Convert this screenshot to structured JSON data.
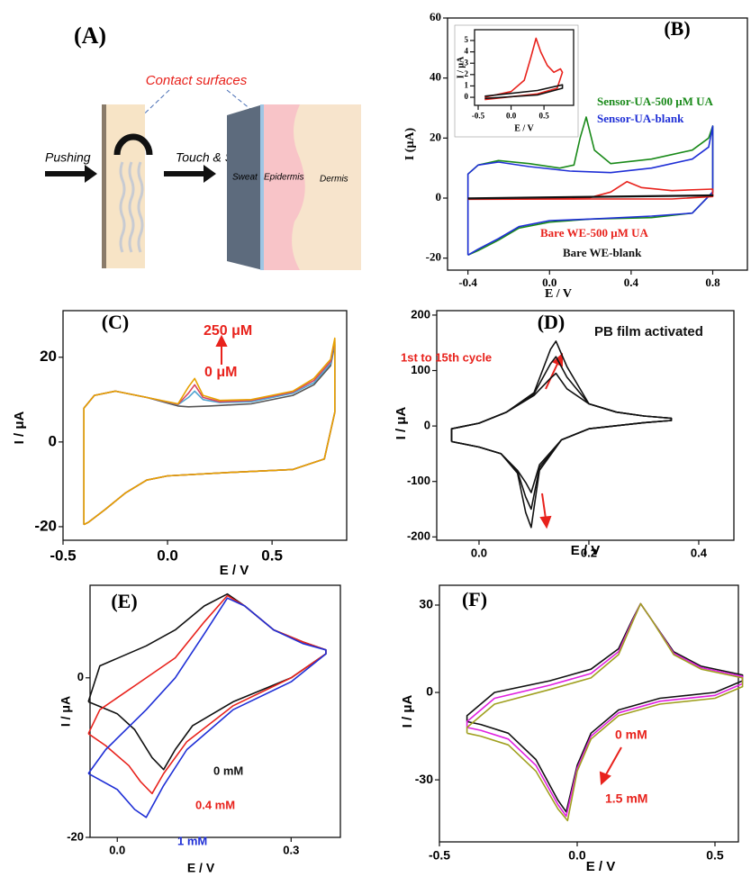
{
  "schematic": {
    "panel_label": "(A)",
    "callout": "Contact surfaces",
    "push_label": "Pushing",
    "touch_label": "Touch & Sense",
    "sweat_label": "Sweat",
    "epidermis_label": "Epidermis",
    "dermis_label": "Dermis"
  },
  "chart_data": [
    {
      "type": "line",
      "panel_label": "(B)",
      "xlabel": "E / V",
      "ylabel": "I (μA)",
      "xlim": [
        -0.5,
        0.97
      ],
      "ylim": [
        -24,
        60
      ],
      "xticks": [
        -0.4,
        {
          "value": 0,
          "label": "0.0"
        },
        0.4,
        0.8
      ],
      "yticks": [
        -20,
        0,
        20,
        40,
        60
      ],
      "series": [
        {
          "name": "Sensor-UA-500 μM UA",
          "color": "#1a8a1a",
          "x": [
            -0.4,
            -0.4,
            -0.35,
            -0.25,
            -0.1,
            0.05,
            0.12,
            0.15,
            0.18,
            0.22,
            0.3,
            0.5,
            0.7,
            0.78,
            0.8,
            0.8,
            0.7,
            0.5,
            0.2,
            0,
            -0.15,
            -0.25,
            -0.35,
            -0.4
          ],
          "values": [
            -19,
            8,
            11,
            12.5,
            11.5,
            10,
            11,
            20,
            27,
            16,
            11.5,
            13,
            16,
            20,
            24,
            2,
            -5,
            -6.5,
            -7,
            -8,
            -10,
            -14,
            -17.5,
            -19
          ]
        },
        {
          "name": "Sensor-UA-blank",
          "color": "#1f2fd6",
          "x": [
            -0.4,
            -0.4,
            -0.35,
            -0.25,
            -0.1,
            0.1,
            0.3,
            0.5,
            0.7,
            0.78,
            0.8,
            0.8,
            0.7,
            0.5,
            0.2,
            0,
            -0.15,
            -0.25,
            -0.35,
            -0.4
          ],
          "values": [
            -19,
            8,
            11,
            12,
            10.5,
            9,
            8.5,
            10,
            13,
            17,
            24,
            2,
            -5,
            -6,
            -7,
            -7.5,
            -9.5,
            -13.5,
            -17,
            -19
          ]
        },
        {
          "name": "Bare WE-500 μM UA",
          "color": "#e8221c",
          "x": [
            -0.4,
            0.2,
            0.3,
            0.38,
            0.45,
            0.6,
            0.8,
            0.8,
            0.6,
            0.2,
            -0.4
          ],
          "values": [
            -0.2,
            0.2,
            2,
            5.5,
            3.5,
            2.5,
            3,
            0.5,
            -0.3,
            -0.3,
            -0.4
          ]
        },
        {
          "name": "Bare WE-blank",
          "color": "#111111",
          "x": [
            -0.4,
            0.8,
            0.8,
            -0.4
          ],
          "values": [
            0,
            1,
            0.8,
            -0.2
          ]
        }
      ]
    },
    {
      "type": "line",
      "xlabel": "E / V",
      "ylabel": "I / μA",
      "xlim": [
        -0.555,
        0.95
      ],
      "ylim": [
        -0.71,
        5.95
      ],
      "xticks": [
        -0.5,
        {
          "value": 0,
          "label": "0.0"
        },
        0.5
      ],
      "yticks": [
        0,
        1,
        2,
        3,
        4,
        5
      ],
      "series": [
        {
          "color": "#e8221c",
          "x": [
            -0.4,
            0,
            0.2,
            0.3,
            0.38,
            0.45,
            0.55,
            0.65,
            0.75,
            0.78,
            0.7,
            0.4,
            -0.4
          ],
          "values": [
            0,
            0.5,
            1.5,
            3.5,
            5.2,
            4,
            2.8,
            2.2,
            2.5,
            2.2,
            0.8,
            0.3,
            -0.2
          ]
        },
        {
          "color": "#111111",
          "x": [
            -0.4,
            0.4,
            0.78,
            0.78,
            0.4,
            -0.4
          ],
          "values": [
            0.1,
            0.6,
            1.1,
            0.8,
            0.2,
            -0.1
          ]
        }
      ]
    },
    {
      "type": "line",
      "panel_label": "(C)",
      "xlabel": "E / V",
      "ylabel": "I / μA",
      "xlim": [
        -0.5,
        0.857
      ],
      "ylim": [
        -23.2,
        31
      ],
      "xticks": [
        -0.5,
        {
          "value": 0,
          "label": "0.0"
        },
        0.5
      ],
      "yticks": [
        -20,
        0,
        20
      ],
      "series": [
        {
          "color": "#555555",
          "x": [
            -0.4,
            -0.4,
            -0.35,
            -0.25,
            -0.1,
            0.05,
            0.1,
            0.2,
            0.4,
            0.6,
            0.7,
            0.78,
            0.8,
            0.8,
            0.75,
            0.6,
            0.3,
            0,
            -0.1,
            -0.2,
            -0.3,
            -0.38,
            -0.4
          ],
          "values": [
            -19.5,
            8,
            11,
            12,
            10.5,
            8.5,
            8.3,
            8.5,
            9,
            11,
            13.5,
            18,
            23,
            7,
            -4,
            -6.5,
            -7.2,
            -8,
            -9,
            -12,
            -16,
            -19,
            -19.5
          ]
        },
        {
          "color": "#4fa3d1",
          "x": [
            -0.4,
            -0.4,
            -0.35,
            -0.25,
            -0.1,
            0.05,
            0.1,
            0.13,
            0.17,
            0.25,
            0.4,
            0.6,
            0.7,
            0.78,
            0.8,
            0.8,
            0.75,
            0.6,
            0.3,
            0,
            -0.1,
            -0.2,
            -0.3,
            -0.38,
            -0.4
          ],
          "values": [
            -19.5,
            8,
            11,
            12,
            10.5,
            8.8,
            10.5,
            12,
            10,
            9.3,
            9.5,
            11.5,
            14,
            18.5,
            23.5,
            7,
            -4,
            -6.5,
            -7.2,
            -8,
            -9,
            -12,
            -16,
            -19,
            -19.5
          ]
        },
        {
          "color": "#d9455f",
          "x": [
            -0.4,
            -0.4,
            -0.35,
            -0.25,
            -0.1,
            0.05,
            0.1,
            0.13,
            0.17,
            0.25,
            0.4,
            0.6,
            0.7,
            0.78,
            0.8,
            0.8,
            0.75,
            0.6,
            0.3,
            0,
            -0.1,
            -0.2,
            -0.3,
            -0.38,
            -0.4
          ],
          "values": [
            -19.5,
            8,
            11,
            12,
            10.5,
            8.9,
            11.5,
            13.5,
            10.5,
            9.5,
            9.8,
            11.8,
            14.5,
            19,
            24,
            7,
            -4,
            -6.5,
            -7.2,
            -8,
            -9,
            -12,
            -16,
            -19,
            -19.5
          ]
        },
        {
          "color": "#e6a100",
          "x": [
            -0.4,
            -0.4,
            -0.35,
            -0.25,
            -0.1,
            0.05,
            0.1,
            0.13,
            0.17,
            0.25,
            0.4,
            0.6,
            0.7,
            0.78,
            0.8,
            0.8,
            0.75,
            0.6,
            0.3,
            0,
            -0.1,
            -0.2,
            -0.3,
            -0.38,
            -0.4
          ],
          "values": [
            -19.5,
            8,
            11,
            12,
            10.5,
            9,
            13,
            15,
            11,
            9.8,
            10,
            12,
            15,
            19.5,
            24.5,
            7,
            -4,
            -6.5,
            -7.2,
            -8,
            -9,
            -12,
            -16,
            -19,
            -19.5
          ]
        }
      ],
      "annotations": [
        {
          "text": "250 μM",
          "color": "#e8221c"
        },
        {
          "text": "0 μM",
          "color": "#e8221c"
        }
      ]
    },
    {
      "type": "line",
      "panel_label": "(D)",
      "xlabel": "E / V",
      "ylabel": "I / μA",
      "xlim": [
        -0.077,
        0.464
      ],
      "ylim": [
        -206,
        208
      ],
      "xticks": [
        {
          "value": 0,
          "label": "0.0"
        },
        0.2,
        0.4
      ],
      "yticks": [
        -200,
        -100,
        0,
        100,
        200
      ],
      "series": [
        {
          "color": "#111111",
          "x": [
            -0.05,
            -0.05,
            0,
            0.05,
            0.1,
            0.13,
            0.14,
            0.16,
            0.2,
            0.25,
            0.3,
            0.35,
            0.35,
            0.3,
            0.2,
            0.15,
            0.11,
            0.095,
            0.085,
            0.07,
            0.04,
            0,
            -0.05
          ],
          "values": [
            -28,
            -5,
            5,
            25,
            55,
            86,
            95,
            67,
            40,
            25,
            18,
            14,
            10,
            6,
            -5,
            -25,
            -70,
            -120,
            -102,
            -80,
            -50,
            -38,
            -28
          ]
        },
        {
          "color": "#111111",
          "x": [
            -0.05,
            -0.05,
            0,
            0.05,
            0.1,
            0.13,
            0.14,
            0.16,
            0.2,
            0.25,
            0.3,
            0.35,
            0.35,
            0.3,
            0.2,
            0.15,
            0.11,
            0.095,
            0.085,
            0.07,
            0.04,
            0,
            -0.05
          ],
          "values": [
            -28,
            -5,
            5,
            25,
            58,
            112,
            125,
            88,
            40,
            25,
            18,
            14,
            10,
            6,
            -5,
            -25,
            -75,
            -150,
            -128,
            -82,
            -50,
            -38,
            -28
          ]
        },
        {
          "color": "#111111",
          "x": [
            -0.05,
            -0.05,
            0,
            0.05,
            0.1,
            0.13,
            0.14,
            0.16,
            0.2,
            0.25,
            0.3,
            0.35,
            0.35,
            0.3,
            0.2,
            0.15,
            0.11,
            0.095,
            0.085,
            0.07,
            0.04,
            0,
            -0.05
          ],
          "values": [
            -28,
            -5,
            5,
            25,
            60,
            138,
            153,
            107,
            40,
            25,
            18,
            14,
            10,
            6,
            -5,
            -25,
            -80,
            -183,
            -156,
            -85,
            -50,
            -38,
            -28
          ]
        }
      ],
      "annotations": [
        {
          "text": "PB film activated",
          "color": "#111111"
        },
        {
          "text": "1st  to 15th cycle",
          "color": "#e8221c"
        }
      ]
    },
    {
      "type": "line",
      "panel_label": "(E)",
      "xlabel": "E / V",
      "ylabel": "I / μA",
      "xlim": [
        -0.047,
        0.385
      ],
      "ylim": [
        -20,
        11.6
      ],
      "xticks": [
        {
          "value": 0,
          "label": "0.0"
        },
        0.3
      ],
      "yticks": [
        -20,
        0
      ],
      "series": [
        {
          "color": "#111111",
          "x": [
            -0.05,
            -0.03,
            0.05,
            0.1,
            0.15,
            0.19,
            0.22,
            0.27,
            0.32,
            0.36,
            0.36,
            0.3,
            0.2,
            0.13,
            0.1,
            0.08,
            0.06,
            0.03,
            0,
            -0.05
          ],
          "values": [
            -3,
            1.5,
            4,
            6,
            9,
            10.5,
            9,
            6,
            4.5,
            3.5,
            3,
            0,
            -3,
            -6,
            -9,
            -11.5,
            -10,
            -6.5,
            -4.5,
            -3
          ]
        },
        {
          "color": "#e8221c",
          "x": [
            -0.05,
            -0.03,
            0.03,
            0.1,
            0.15,
            0.19,
            0.22,
            0.27,
            0.32,
            0.36,
            0.36,
            0.3,
            0.2,
            0.12,
            0.08,
            0.06,
            0.04,
            0.02,
            -0.02,
            -0.05
          ],
          "values": [
            -7,
            -4,
            -1,
            2.5,
            7,
            10.3,
            9,
            6,
            4.5,
            3.5,
            3,
            0,
            -3.5,
            -8,
            -12,
            -14.5,
            -13,
            -11,
            -8.5,
            -7
          ]
        },
        {
          "color": "#1f2fd6",
          "x": [
            -0.05,
            -0.02,
            0.05,
            0.1,
            0.15,
            0.19,
            0.22,
            0.27,
            0.32,
            0.36,
            0.36,
            0.3,
            0.2,
            0.12,
            0.08,
            0.05,
            0.03,
            0,
            -0.05
          ],
          "values": [
            -12,
            -9,
            -4,
            0,
            5.5,
            10,
            9,
            6,
            4.3,
            3.5,
            3,
            -0.5,
            -4,
            -9,
            -13.5,
            -17.5,
            -16.5,
            -14,
            -12
          ]
        }
      ],
      "annotations": [
        {
          "text": "0 mM",
          "color": "#111111"
        },
        {
          "text": "0.4 mM",
          "color": "#e8221c"
        },
        {
          "text": "1 mM",
          "color": "#1f2fd6"
        }
      ]
    },
    {
      "type": "line",
      "panel_label": "(F)",
      "xlabel": "E / V",
      "ylabel": "I / μA",
      "xlim": [
        -0.5,
        0.585
      ],
      "ylim": [
        -51.3,
        36.8
      ],
      "xticks": [
        -0.5,
        {
          "value": 0,
          "label": "0.0"
        },
        0.5
      ],
      "yticks": [
        -30,
        0,
        30
      ],
      "series": [
        {
          "color": "#111111",
          "x": [
            -0.4,
            -0.4,
            -0.3,
            -0.1,
            0.05,
            0.15,
            0.2,
            0.23,
            0.27,
            0.35,
            0.45,
            0.55,
            0.6,
            0.6,
            0.5,
            0.3,
            0.15,
            0.05,
            0,
            -0.04,
            -0.07,
            -0.15,
            -0.25,
            -0.35,
            -0.4
          ],
          "values": [
            -10,
            -8,
            0,
            4,
            8,
            15,
            25,
            30.5,
            25,
            14,
            9,
            7,
            6,
            4,
            0,
            -2,
            -6,
            -14,
            -25,
            -41,
            -37,
            -23,
            -14,
            -11,
            -10
          ]
        },
        {
          "color": "#e020e0",
          "x": [
            -0.4,
            -0.4,
            -0.3,
            -0.1,
            0.05,
            0.15,
            0.2,
            0.23,
            0.27,
            0.35,
            0.45,
            0.55,
            0.6,
            0.6,
            0.5,
            0.3,
            0.15,
            0.05,
            0,
            -0.04,
            -0.07,
            -0.15,
            -0.25,
            -0.35,
            -0.4
          ],
          "values": [
            -12,
            -10,
            -2,
            2.5,
            6.5,
            14,
            24.5,
            30.5,
            25,
            13.5,
            8.5,
            6.5,
            5.5,
            3,
            -1,
            -3,
            -7,
            -15,
            -26,
            -42.5,
            -38.5,
            -25,
            -16,
            -13,
            -12
          ]
        },
        {
          "color": "#a0a020",
          "x": [
            -0.4,
            -0.4,
            -0.3,
            -0.1,
            0.05,
            0.15,
            0.2,
            0.23,
            0.27,
            0.35,
            0.45,
            0.55,
            0.6,
            0.6,
            0.5,
            0.3,
            0.15,
            0.05,
            0,
            -0.035,
            -0.07,
            -0.15,
            -0.25,
            -0.35,
            -0.4
          ],
          "values": [
            -14,
            -12,
            -4,
            1,
            5,
            13,
            24,
            30.5,
            25,
            13,
            8,
            6,
            5,
            2,
            -2,
            -4,
            -8,
            -16,
            -27,
            -44,
            -40,
            -27,
            -18,
            -15,
            -14
          ]
        }
      ],
      "annotations": [
        {
          "text": "0 mM",
          "color": "#e8221c"
        },
        {
          "text": "1.5 mM",
          "color": "#e8221c"
        }
      ]
    }
  ]
}
